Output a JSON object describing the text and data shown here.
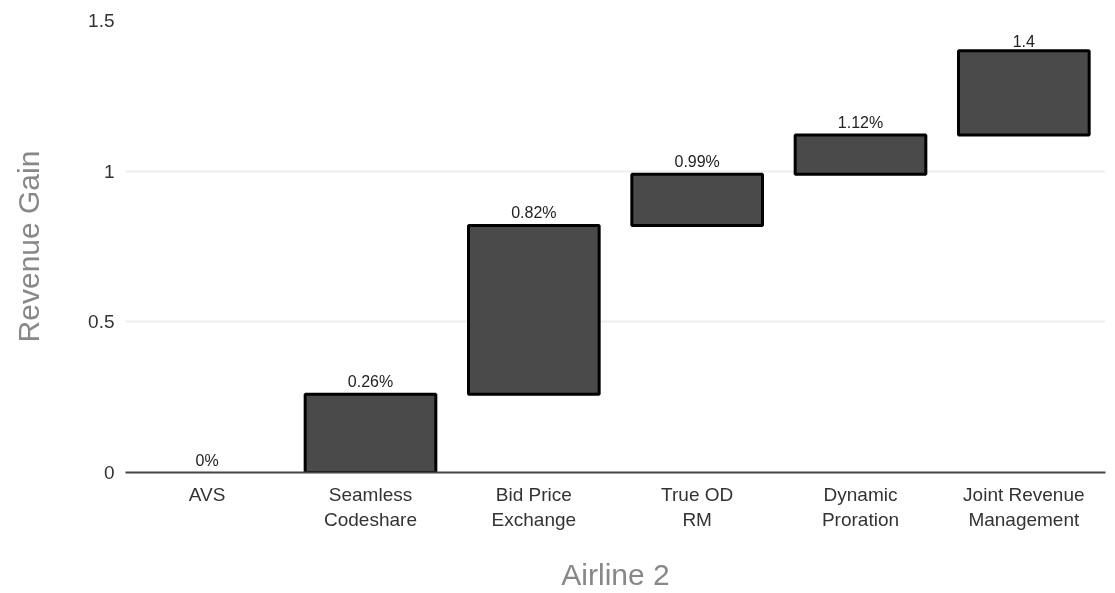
{
  "chart_data": {
    "type": "bar",
    "xlabel": "Airline 2",
    "ylabel": "Revenue Gain",
    "categories": [
      "AVS",
      "Seamless\nCodeshare",
      "Bid Price\nExchange",
      "True OD\nRM",
      "Dynamic\nProration",
      "Joint Revenue\nManagement"
    ],
    "base": [
      null,
      0,
      0.26,
      0.82,
      0.99,
      1.12
    ],
    "values": [
      0,
      0.26,
      0.56,
      0.17,
      0.13,
      0.28
    ],
    "value_labels": [
      "0%",
      "0.26%",
      "0.82%",
      "0.99%",
      "1.12%",
      "1.4"
    ],
    "color": "#4a4a4a",
    "ylim": [
      0,
      1.5
    ],
    "yticks": [
      0,
      0.5,
      1,
      1.5
    ],
    "grid": "y"
  }
}
